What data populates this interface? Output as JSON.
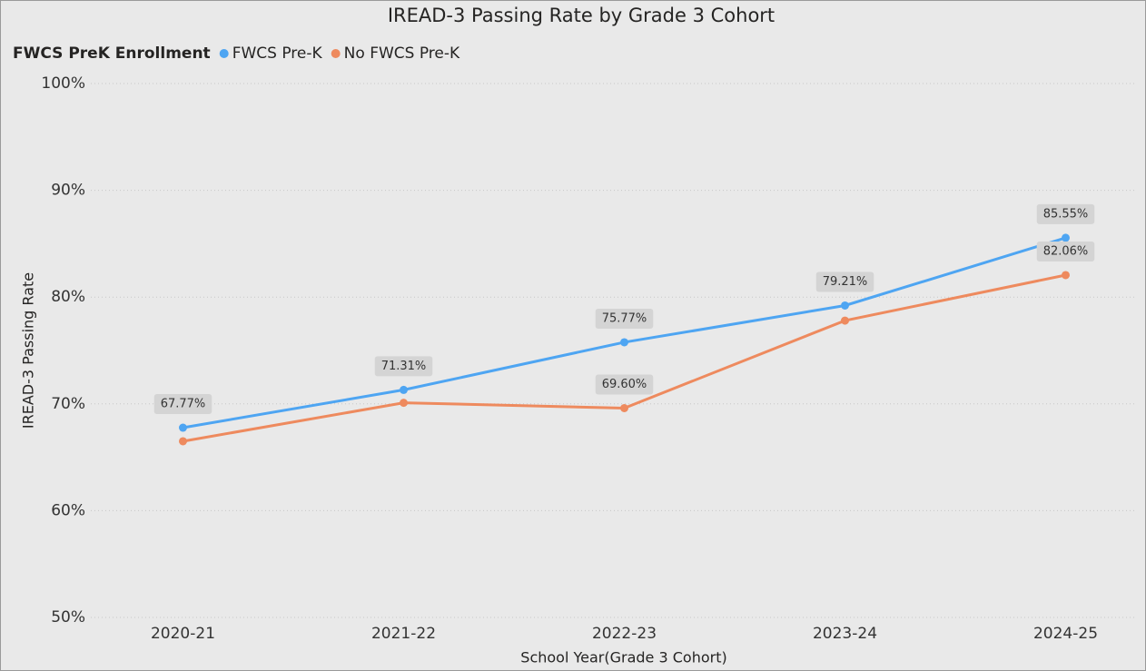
{
  "chart_data": {
    "type": "line",
    "title": "IREAD-3 Passing Rate by Grade 3 Cohort",
    "legend_title": "FWCS PreK Enrollment",
    "x_label": "School Year(Grade 3 Cohort)",
    "y_label": "IREAD-3 Passing Rate",
    "categories": [
      "2020-21",
      "2021-22",
      "2022-23",
      "2023-24",
      "2024-25"
    ],
    "series": [
      {
        "name": "FWCS Pre-K",
        "color": "#4ea5f2",
        "values": [
          67.77,
          71.31,
          75.77,
          79.21,
          85.55
        ],
        "value_labels": [
          "67.77%",
          "71.31%",
          "75.77%",
          "79.21%",
          "85.55%"
        ]
      },
      {
        "name": "No FWCS Pre-K",
        "color": "#ee8a5e",
        "values": [
          66.5,
          70.1,
          69.6,
          77.8,
          82.06
        ],
        "value_labels": [
          null,
          null,
          "69.60%",
          null,
          "82.06%"
        ]
      }
    ],
    "ylim": [
      50,
      100
    ],
    "yticks": [
      {
        "value": 50,
        "label": "50%"
      },
      {
        "value": 60,
        "label": "60%"
      },
      {
        "value": 70,
        "label": "70%"
      },
      {
        "value": 80,
        "label": "80%"
      },
      {
        "value": 90,
        "label": "90%"
      },
      {
        "value": 100,
        "label": "100%"
      }
    ],
    "grid": true,
    "legend_position": "top-left"
  }
}
